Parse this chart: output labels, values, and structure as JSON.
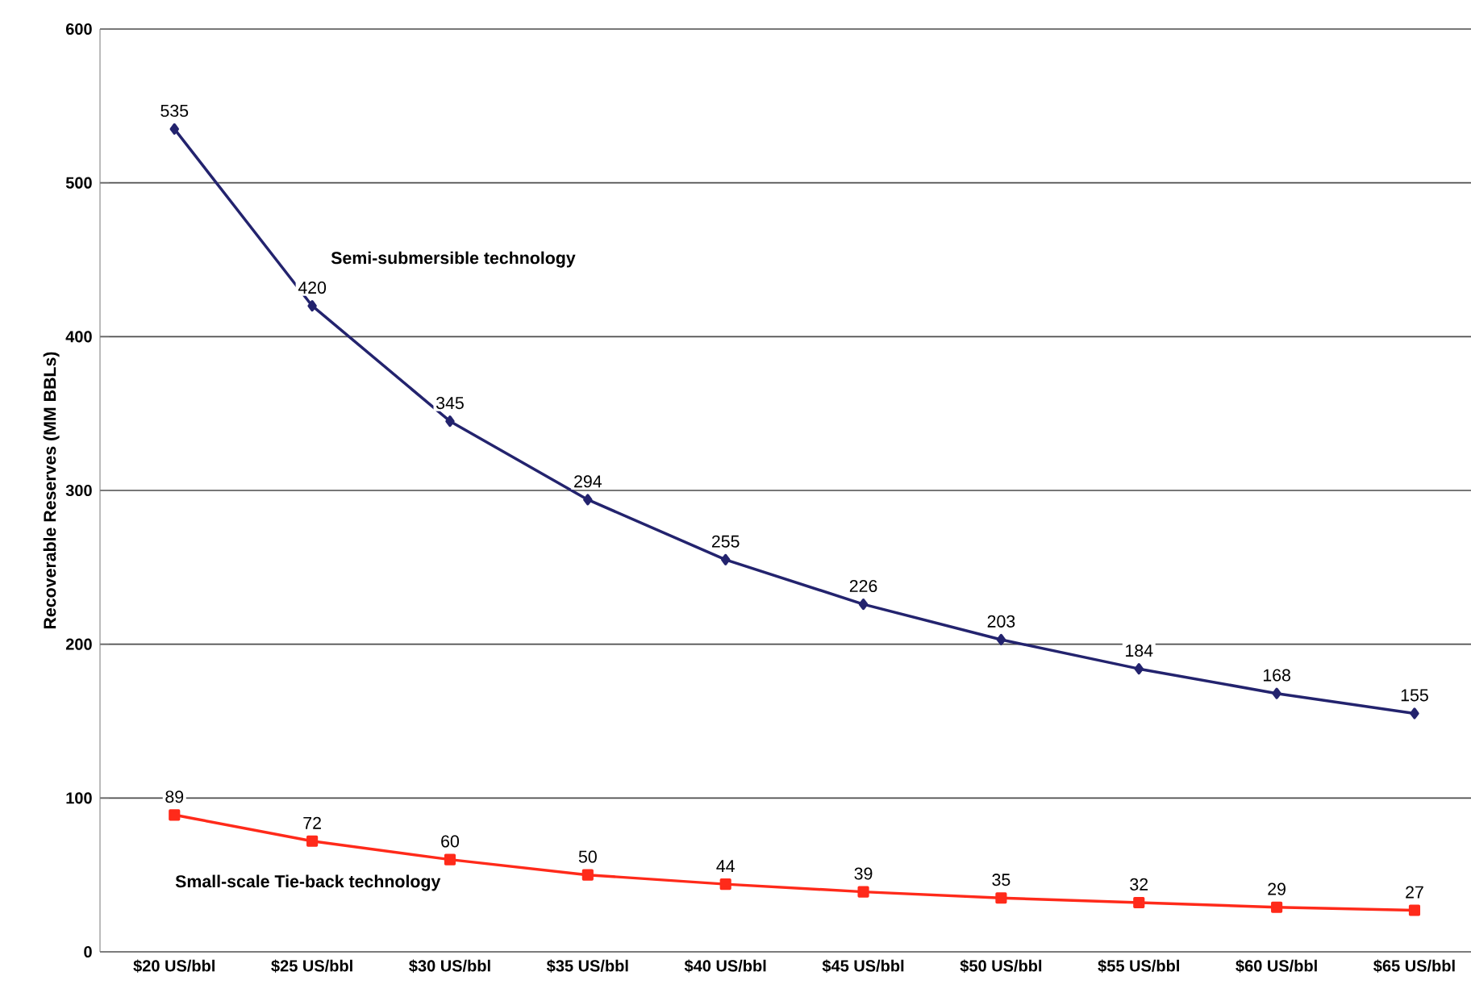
{
  "chart_data": {
    "type": "line",
    "ylabel": "Recoverable Reserves (MM BBLs)",
    "categories": [
      "$20 US/bbl",
      "$25 US/bbl",
      "$30 US/bbl",
      "$35 US/bbl",
      "$40 US/bbl",
      "$45 US/bbl",
      "$50 US/bbl",
      "$55 US/bbl",
      "$60 US/bbl",
      "$65 US/bbl"
    ],
    "series": [
      {
        "name": "Semi-submersible technology",
        "color": "#23236e",
        "marker": "diamond",
        "values": [
          535,
          420,
          345,
          294,
          255,
          226,
          203,
          184,
          168,
          155
        ]
      },
      {
        "name": "Small-scale Tie-back technology",
        "color": "#ff2a1a",
        "marker": "square",
        "values": [
          89,
          72,
          60,
          50,
          44,
          39,
          35,
          32,
          29,
          27
        ]
      }
    ],
    "ylim": [
      0,
      600
    ],
    "yticks": [
      0,
      100,
      200,
      300,
      400,
      500,
      600
    ],
    "grid": "y",
    "data_labels": true,
    "line_style": "solid"
  }
}
